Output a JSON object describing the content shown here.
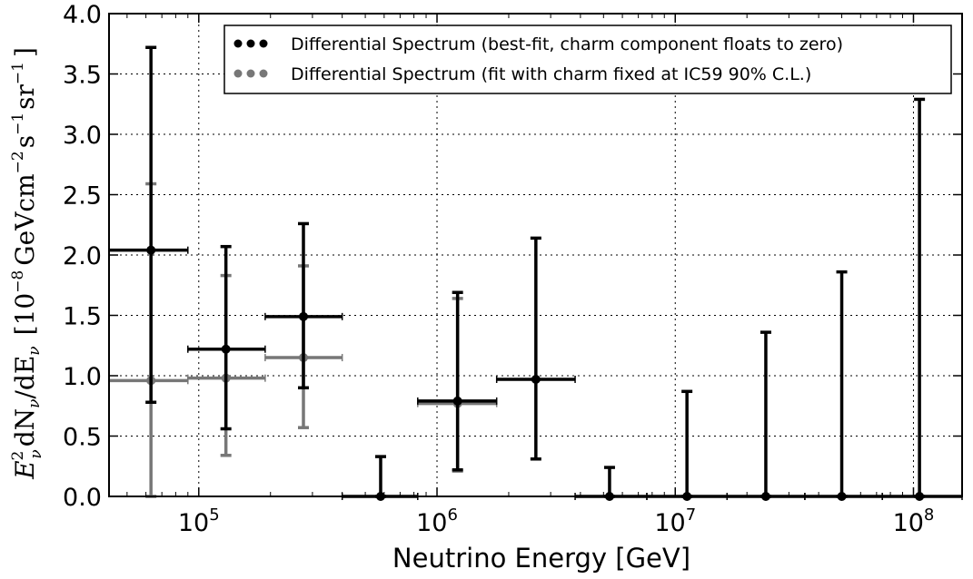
{
  "chart_data": {
    "type": "scatter",
    "xscale": "log",
    "xlim": [
      42000,
      160000000
    ],
    "ylim": [
      0.0,
      4.0
    ],
    "grid": true,
    "xlabel": "Neutrino Energy [GeV]",
    "ylabel": "E²ν dNν/dEν [10⁻⁸ GeV cm⁻² s⁻¹ sr⁻¹]",
    "ylabel_parts": {
      "lhs": "E",
      "lhs_sup": "2",
      "lhs_sub": "ν",
      "mid": "dN",
      "mid_sub": "ν",
      "slash": "/dE",
      "slash_sub": "ν",
      "bracket_open": "[10",
      "exp8": "−8",
      "gev": "GeVcm",
      "exp2": "−2",
      "s": "s",
      "exp1a": "−1",
      "sr": "sr",
      "exp1b": "−1",
      "bracket_close": "]"
    },
    "yticks": [
      "0.0",
      "0.5",
      "1.0",
      "1.5",
      "2.0",
      "2.5",
      "3.0",
      "3.5",
      "4.0"
    ],
    "xticks": [
      {
        "base": "10",
        "exp": "5"
      },
      {
        "base": "10",
        "exp": "6"
      },
      {
        "base": "10",
        "exp": "7"
      },
      {
        "base": "10",
        "exp": "8"
      }
    ],
    "legend_position": "top-right",
    "series": [
      {
        "name": "Differential Spectrum (best-fit, charm component floats to zero)",
        "color": "#000000",
        "points": [
          {
            "x": 63000,
            "y": 2.04,
            "xlo": 42000,
            "xhi": 90000,
            "ylo": 0.78,
            "yhi": 3.72
          },
          {
            "x": 130000,
            "y": 1.22,
            "xlo": 90000,
            "xhi": 190000,
            "ylo": 0.56,
            "yhi": 2.07
          },
          {
            "x": 275000,
            "y": 1.49,
            "xlo": 190000,
            "xhi": 400000,
            "ylo": 0.9,
            "yhi": 2.26
          },
          {
            "x": 580000,
            "y": 0.0,
            "xlo": 400000,
            "xhi": 830000,
            "ylo": 0.0,
            "yhi": 0.33
          },
          {
            "x": 1220000,
            "y": 0.79,
            "xlo": 830000,
            "xhi": 1780000,
            "ylo": 0.22,
            "yhi": 1.69
          },
          {
            "x": 2600000,
            "y": 0.97,
            "xlo": 1780000,
            "xhi": 3800000,
            "ylo": 0.31,
            "yhi": 2.14
          },
          {
            "x": 5300000,
            "y": 0.0,
            "xlo": 3800000,
            "xhi": 7600000,
            "ylo": 0.0,
            "yhi": 0.24
          },
          {
            "x": 11200000,
            "y": 0.0,
            "xlo": 7600000,
            "xhi": 16500000,
            "ylo": 0.0,
            "yhi": 0.87
          },
          {
            "x": 24000000,
            "y": 0.0,
            "xlo": 16500000,
            "xhi": 35000000,
            "ylo": 0.0,
            "yhi": 1.36
          },
          {
            "x": 50000000,
            "y": 0.0,
            "xlo": 35000000,
            "xhi": 74000000,
            "ylo": 0.0,
            "yhi": 1.86
          },
          {
            "x": 106000000,
            "y": 0.0,
            "xlo": 74000000,
            "xhi": 160000000,
            "ylo": 0.0,
            "yhi": 3.29
          }
        ]
      },
      {
        "name": "Differential Spectrum (fit with charm fixed at IC59 90% C.L.)",
        "color": "#777777",
        "points": [
          {
            "x": 63000,
            "y": 0.96,
            "xlo": 42000,
            "xhi": 90000,
            "ylo": 0.0,
            "yhi": 2.59
          },
          {
            "x": 130000,
            "y": 0.98,
            "xlo": 90000,
            "xhi": 190000,
            "ylo": 0.34,
            "yhi": 1.83
          },
          {
            "x": 275000,
            "y": 1.15,
            "xlo": 190000,
            "xhi": 400000,
            "ylo": 0.57,
            "yhi": 1.91
          },
          {
            "x": 1220000,
            "y": 0.77,
            "xlo": 830000,
            "xhi": 1780000,
            "ylo": 0.21,
            "yhi": 1.64
          }
        ]
      }
    ]
  }
}
